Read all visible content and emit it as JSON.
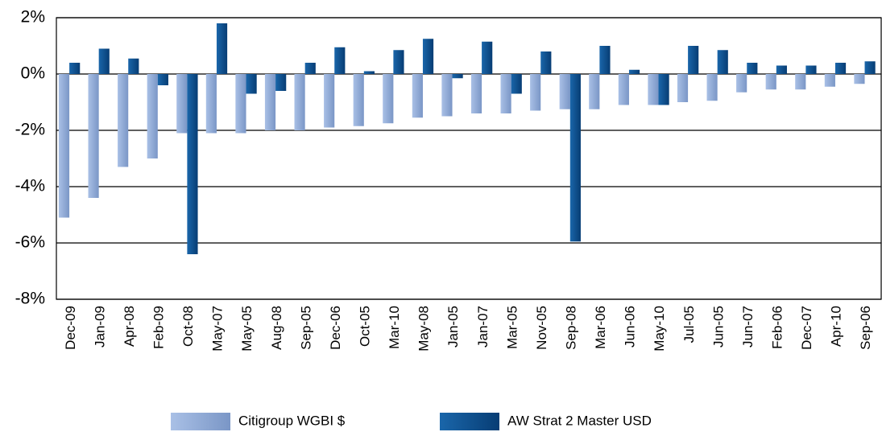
{
  "chart_data": {
    "type": "bar",
    "categories": [
      "Dec-09",
      "Jan-09",
      "Apr-08",
      "Feb-09",
      "Oct-08",
      "May-07",
      "May-05",
      "Aug-08",
      "Sep-05",
      "Dec-06",
      "Oct-05",
      "Mar-10",
      "May-08",
      "Jan-05",
      "Jan-07",
      "Mar-05",
      "Nov-05",
      "Sep-08",
      "Mar-06",
      "Jun-06",
      "May-10",
      "Jul-05",
      "Jun-05",
      "Jun-07",
      "Feb-06",
      "Dec-07",
      "Apr-10",
      "Sep-06"
    ],
    "series": [
      {
        "name": "Citigroup WGBI $",
        "color": "#8eaad8",
        "values": [
          -5.1,
          -4.4,
          -3.3,
          -3.0,
          -2.1,
          -2.1,
          -2.1,
          -2.0,
          -2.0,
          -1.9,
          -1.85,
          -1.75,
          -1.55,
          -1.5,
          -1.4,
          -1.4,
          -1.3,
          -1.25,
          -1.25,
          -1.1,
          -1.1,
          -1.0,
          -0.95,
          -0.65,
          -0.55,
          -0.55,
          -0.45,
          -0.35
        ]
      },
      {
        "name": "AW Strat 2 Master USD",
        "color": "#0b4f8f",
        "values": [
          0.4,
          0.9,
          0.55,
          -0.4,
          -6.4,
          1.8,
          -0.7,
          -0.6,
          0.4,
          0.95,
          0.1,
          0.85,
          1.25,
          -0.15,
          1.15,
          -0.7,
          0.8,
          -5.95,
          1.0,
          0.15,
          -1.1,
          1.0,
          0.85,
          0.4,
          0.3,
          0.3,
          0.4,
          0.45
        ]
      }
    ],
    "ylim": [
      -8,
      2
    ],
    "yticks": [
      {
        "value": -8,
        "label": "-8%"
      },
      {
        "value": -6,
        "label": "-6%"
      },
      {
        "value": -4,
        "label": "-4%"
      },
      {
        "value": -2,
        "label": "-2%"
      },
      {
        "value": 0,
        "label": "0%"
      },
      {
        "value": 2,
        "label": "2%"
      }
    ],
    "grid": true
  }
}
